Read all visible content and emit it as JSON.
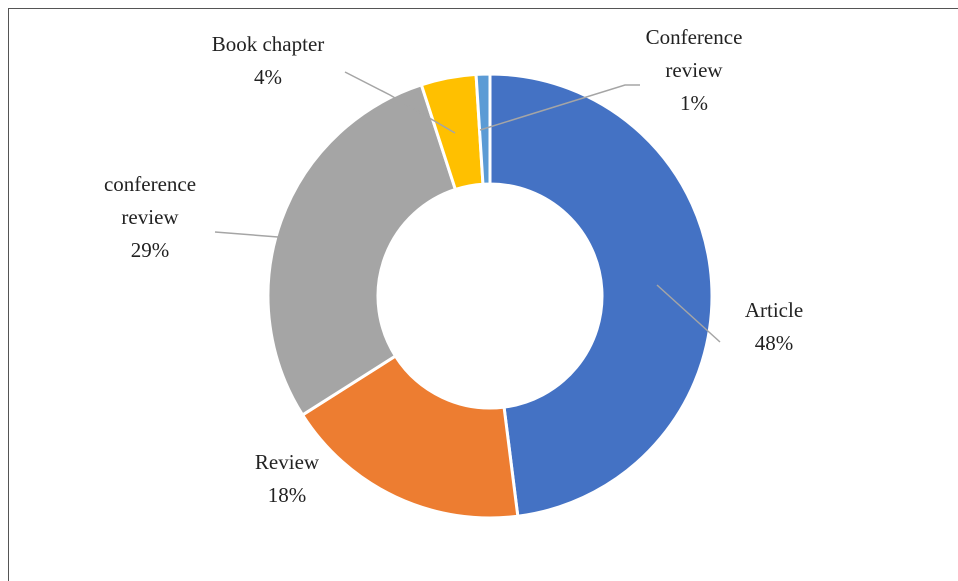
{
  "chart_data": {
    "type": "donut",
    "categories": [
      "Article",
      "Review",
      "conference review",
      "Book chapter",
      "Conference review"
    ],
    "values": [
      48,
      18,
      29,
      4,
      1
    ],
    "value_labels": [
      "48%",
      "18%",
      "29%",
      "4%",
      "1%"
    ],
    "colors": [
      "#4472c4",
      "#ed7d31",
      "#a5a5a5",
      "#ffc000",
      "#5b9bd5"
    ]
  }
}
